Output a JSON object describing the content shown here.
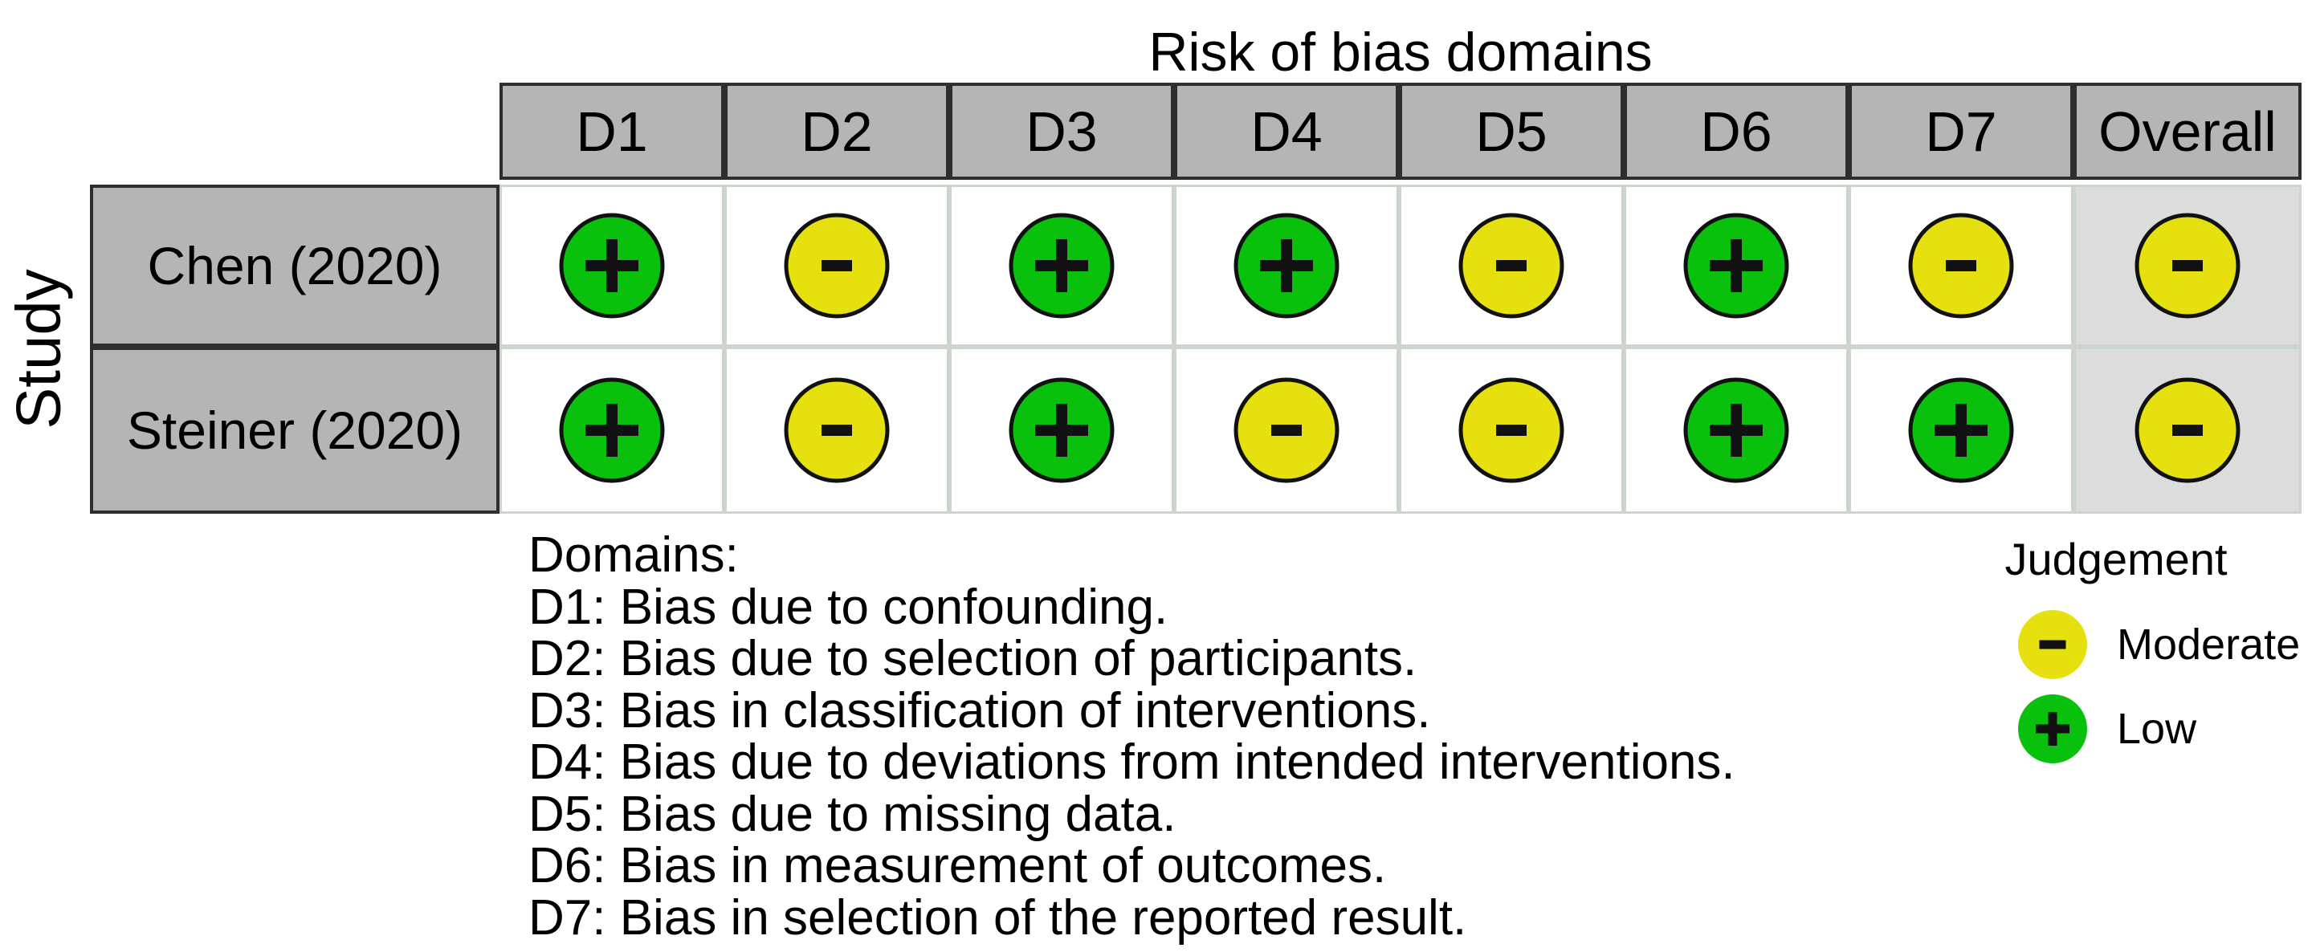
{
  "figure": {
    "title": "Risk of bias domains",
    "y_axis_label": "Study",
    "columns": [
      "D1",
      "D2",
      "D3",
      "D4",
      "D5",
      "D6",
      "D7",
      "Overall"
    ],
    "rows": [
      {
        "study": "Chen (2020)",
        "judgements": [
          "low",
          "moderate",
          "low",
          "low",
          "moderate",
          "low",
          "moderate",
          "moderate"
        ]
      },
      {
        "study": "Steiner (2020)",
        "judgements": [
          "low",
          "moderate",
          "low",
          "moderate",
          "moderate",
          "low",
          "low",
          "moderate"
        ]
      }
    ]
  },
  "judgement_levels": {
    "low": {
      "label": "Low",
      "color": "#09c00c",
      "symbol": "plus"
    },
    "moderate": {
      "label": "Moderate",
      "color": "#e6e00f",
      "symbol": "minus"
    }
  },
  "footnotes": {
    "heading": "Domains:",
    "lines": [
      "D1: Bias due to confounding.",
      "D2: Bias due to selection of participants.",
      "D3: Bias in classification of interventions.",
      "D4: Bias due to deviations from intended interventions.",
      "D5: Bias due to missing data.",
      "D6: Bias in measurement of outcomes.",
      "D7: Bias in selection of the reported result."
    ]
  },
  "legend": {
    "title": "Judgement",
    "items": [
      {
        "judgement": "moderate",
        "label": "Moderate"
      },
      {
        "judgement": "low",
        "label": "Low"
      }
    ]
  },
  "colors": {
    "header_fill": "#b5b5b5",
    "header_border": "#2e2e2e",
    "cell_border": "#ccd5cc",
    "overall_cell_fill": "#dcdcdc",
    "symbol_color": "#111111",
    "circle_stroke": "#111111"
  },
  "chart_data": {
    "type": "table",
    "title": "Risk of bias domains",
    "x_categories": [
      "D1",
      "D2",
      "D3",
      "D4",
      "D5",
      "D6",
      "D7",
      "Overall"
    ],
    "y_categories": [
      "Chen (2020)",
      "Steiner (2020)"
    ],
    "values": [
      [
        "Low",
        "Moderate",
        "Low",
        "Low",
        "Moderate",
        "Low",
        "Moderate",
        "Moderate"
      ],
      [
        "Low",
        "Moderate",
        "Low",
        "Moderate",
        "Moderate",
        "Low",
        "Low",
        "Moderate"
      ]
    ],
    "legend_entries": [
      {
        "label": "Moderate",
        "color": "#e6e00f",
        "symbol": "-"
      },
      {
        "label": "Low",
        "color": "#09c00c",
        "symbol": "+"
      }
    ],
    "legend_position": "bottom-right",
    "grid": "on"
  }
}
